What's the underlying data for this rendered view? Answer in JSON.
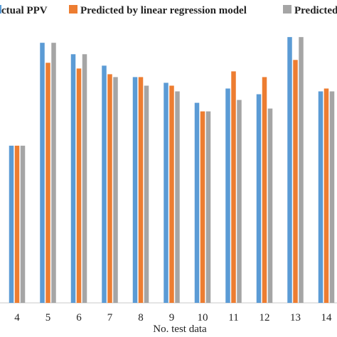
{
  "chart_data": {
    "type": "bar",
    "title": "",
    "xlabel": "No. test data",
    "ylabel": "",
    "categories": [
      "4",
      "5",
      "6",
      "7",
      "8",
      "9",
      "10",
      "11",
      "12",
      "13",
      "14"
    ],
    "series": [
      {
        "name": "ctual PPV",
        "color": "#5b9bd5",
        "values": [
          55,
          91,
          87,
          83,
          79,
          77,
          70,
          75,
          73,
          93,
          74
        ]
      },
      {
        "name": "Predicted by linear regression model",
        "color": "#ed7d31",
        "values": [
          55,
          84,
          82,
          80,
          79,
          76,
          67,
          81,
          79,
          85,
          75
        ]
      },
      {
        "name": "Predicted",
        "color": "#a5a5a5",
        "values": [
          55,
          91,
          87,
          79,
          76,
          74,
          67,
          71,
          68,
          93,
          74
        ]
      }
    ],
    "ylim": [
      0,
      100
    ],
    "grid": false,
    "legend": "top"
  }
}
